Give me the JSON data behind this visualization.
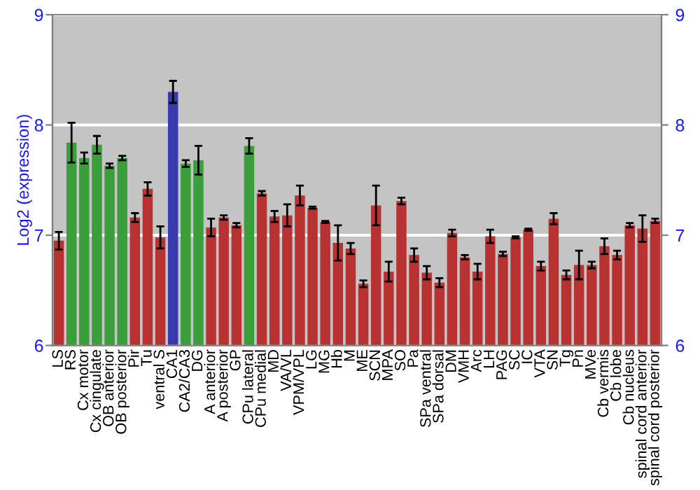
{
  "chart_data": {
    "type": "bar",
    "ylabel": "Log2 (expression)",
    "categories": [
      "LS",
      "RS",
      "Cx motor",
      "Cx cingulate",
      "OB anterior",
      "OB posterior",
      "Pir",
      "Tu",
      "ventral S",
      "CA1",
      "CA2/CA3",
      "DG",
      "A anterior",
      "A posterior",
      "GP",
      "CPu lateral",
      "CPu medial",
      "MD",
      "VA/VL",
      "VPM/VPL",
      "LG",
      "MG",
      "Hb",
      "M",
      "ME",
      "SCN",
      "MPA",
      "SO",
      "Pa",
      "SPa ventral",
      "SPa dorsal",
      "DM",
      "VMH",
      "Arc",
      "LH",
      "PAG",
      "SC",
      "IC",
      "VTA",
      "SN",
      "Tg",
      "Pn",
      "MVe",
      "Cb vermis",
      "Cb lobe",
      "Cb nucleus",
      "spinal cord anterior",
      "spinal cord posterior"
    ],
    "values": [
      6.95,
      7.84,
      7.7,
      7.82,
      7.63,
      7.7,
      7.16,
      7.42,
      6.98,
      8.3,
      7.65,
      7.68,
      7.07,
      7.16,
      7.09,
      7.81,
      7.38,
      7.17,
      7.18,
      7.36,
      7.25,
      7.12,
      6.93,
      6.88,
      6.56,
      7.27,
      6.67,
      7.31,
      6.82,
      6.66,
      6.57,
      7.02,
      6.8,
      6.67,
      6.99,
      6.83,
      6.98,
      7.05,
      6.72,
      7.15,
      6.64,
      6.73,
      6.73,
      6.9,
      6.82,
      7.09,
      7.06,
      7.13
    ],
    "errors": [
      0.08,
      0.18,
      0.05,
      0.08,
      0.02,
      0.02,
      0.04,
      0.06,
      0.1,
      0.1,
      0.03,
      0.13,
      0.08,
      0.02,
      0.02,
      0.07,
      0.02,
      0.05,
      0.1,
      0.09,
      0.01,
      0.01,
      0.16,
      0.05,
      0.03,
      0.18,
      0.09,
      0.03,
      0.06,
      0.06,
      0.04,
      0.03,
      0.02,
      0.07,
      0.06,
      0.02,
      0.01,
      0.01,
      0.04,
      0.05,
      0.04,
      0.13,
      0.03,
      0.07,
      0.04,
      0.02,
      0.12,
      0.02
    ],
    "colors": [
      "#b83232",
      "#3a9e3a",
      "#3a9e3a",
      "#3a9e3a",
      "#3a9e3a",
      "#3a9e3a",
      "#b83232",
      "#b83232",
      "#b83232",
      "#3a3ab0",
      "#3a9e3a",
      "#3a9e3a",
      "#b83232",
      "#b83232",
      "#b83232",
      "#3a9e3a",
      "#b83232",
      "#b83232",
      "#b83232",
      "#b83232",
      "#b83232",
      "#b83232",
      "#b83232",
      "#b83232",
      "#b83232",
      "#b83232",
      "#b83232",
      "#b83232",
      "#b83232",
      "#b83232",
      "#b83232",
      "#b83232",
      "#b83232",
      "#b83232",
      "#b83232",
      "#b83232",
      "#b83232",
      "#b83232",
      "#b83232",
      "#b83232",
      "#b83232",
      "#b83232",
      "#b83232",
      "#b83232",
      "#b83232",
      "#b83232",
      "#b83232",
      "#b83232"
    ],
    "ylim": [
      6,
      9
    ],
    "yticks": [
      6,
      7,
      8,
      9
    ],
    "y2lim": [
      6,
      9
    ],
    "y2ticks": [
      6,
      7,
      8,
      9
    ],
    "grid": "y"
  }
}
